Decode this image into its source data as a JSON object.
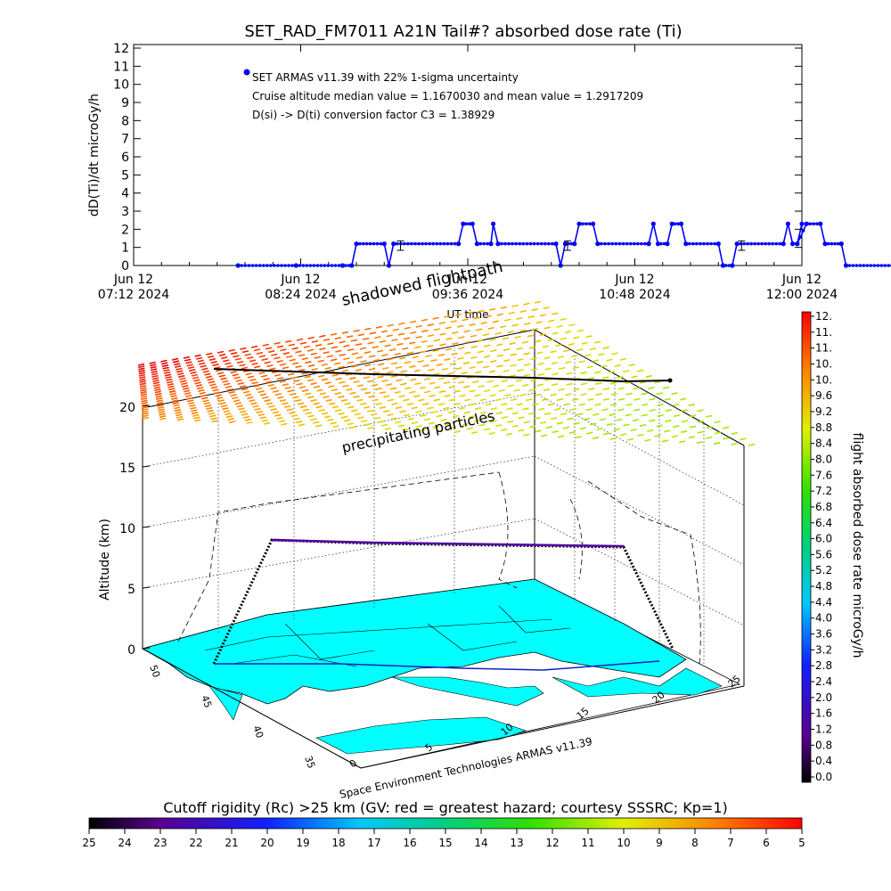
{
  "chart_data": [
    {
      "type": "line",
      "title": "SET_RAD_FM7011  A21N Tail#? absorbed dose rate (Ti)",
      "ylabel": "dD(Ti)/dt microGy/h",
      "xlabel": "UT time",
      "ylim": [
        0,
        12
      ],
      "yticks": [
        "0",
        "1",
        "2",
        "3",
        "4",
        "5",
        "6",
        "7",
        "8",
        "9",
        "10",
        "11",
        "12"
      ],
      "xticks": [
        {
          "date": "Jun 12",
          "time": "07:12 2024"
        },
        {
          "date": "Jun 12",
          "time": "08:24 2024"
        },
        {
          "date": "Jun 12",
          "time": "09:36 2024"
        },
        {
          "date": "Jun 12",
          "time": "10:48 2024"
        },
        {
          "date": "Jun 12",
          "time": "12:00 2024"
        }
      ],
      "xrange_minutes": [
        0,
        288
      ],
      "annotations": [
        "SET ARMAS v11.39 with 22% 1-sigma uncertainty",
        "Cruise altitude median value = 1.1670030 and mean value = 1.2917209",
        "D(si) -> D(ti) conversion factor C3 = 1.38929"
      ],
      "series": [
        {
          "color": "#0000ff",
          "points": [
            [
              45,
              0
            ],
            [
              70,
              0
            ],
            [
              90,
              0
            ],
            [
              94,
              0
            ],
            [
              96,
              1.2
            ],
            [
              108,
              1.2
            ],
            [
              110,
              0
            ],
            [
              112,
              1.2
            ],
            [
              140,
              1.2
            ],
            [
              142,
              2.3
            ],
            [
              146,
              2.3
            ],
            [
              148,
              1.2
            ],
            [
              154,
              1.2
            ],
            [
              155,
              2.3
            ],
            [
              157,
              1.2
            ],
            [
              182,
              1.2
            ],
            [
              184,
              0
            ],
            [
              186,
              1.2
            ],
            [
              190,
              1.2
            ],
            [
              192,
              2.3
            ],
            [
              198,
              2.3
            ],
            [
              200,
              1.2
            ],
            [
              222,
              1.2
            ],
            [
              224,
              2.3
            ],
            [
              226,
              1.2
            ],
            [
              230,
              1.2
            ],
            [
              232,
              2.3
            ],
            [
              236,
              2.3
            ],
            [
              238,
              1.2
            ],
            [
              252,
              1.2
            ],
            [
              254,
              0
            ],
            [
              258,
              0
            ],
            [
              260,
              1.2
            ],
            [
              280,
              1.2
            ],
            [
              282,
              2.3
            ],
            [
              284,
              1.2
            ],
            [
              286,
              1.2
            ],
            [
              288,
              2.3
            ]
          ],
          "points_b": [
            [
              286,
              1.2
            ],
            [
              290,
              2.3
            ],
            [
              296,
              2.3
            ],
            [
              298,
              1.2
            ],
            [
              305,
              1.2
            ],
            [
              307,
              0
            ],
            [
              330,
              0
            ],
            [
              346,
              0
            ]
          ]
        }
      ],
      "error_bars": [
        {
          "x": 115,
          "y": 1.1,
          "err": 0.26
        },
        {
          "x": 187,
          "y": 1.1,
          "err": 0.26
        },
        {
          "x": 262,
          "y": 1.1,
          "err": 0.26
        }
      ]
    },
    {
      "type": "surface-3d",
      "zlabel": "Altitude (km)",
      "zticks": [
        "0",
        "5",
        "10",
        "15",
        "20"
      ],
      "lat_ticks": [
        "50",
        "45",
        "40",
        "35"
      ],
      "lon_ticks": [
        "0",
        "5",
        "10",
        "15",
        "20",
        "25"
      ],
      "labels": {
        "shadowed": "shadowed flightpath",
        "precip": "precipitating particles",
        "credit": "Space Environment Technologies ARMAS v11.39"
      }
    }
  ],
  "colorbar_right": {
    "label": "flight absorbed dose rate microGy/h",
    "ticks": [
      "12.",
      "11.",
      "11.",
      "10.",
      "10.",
      "9.6",
      "9.2",
      "8.8",
      "8.4",
      "8.0",
      "7.6",
      "7.2",
      "6.8",
      "6.4",
      "6.0",
      "5.6",
      "5.2",
      "4.8",
      "4.4",
      "4.0",
      "3.6",
      "3.2",
      "2.8",
      "2.4",
      "2.0",
      "1.6",
      "1.2",
      "0.8",
      "0.4",
      "0.0"
    ]
  },
  "colorbar_bottom": {
    "title": "Cutoff rigidity (Rc) >25 km (GV: red = greatest hazard; courtesy SSSRC; Kp=1)",
    "ticks": [
      "25",
      "24",
      "23",
      "22",
      "21",
      "20",
      "19",
      "18",
      "17",
      "16",
      "15",
      "14",
      "13",
      "12",
      "11",
      "10",
      "9",
      "8",
      "7",
      "6",
      "5"
    ]
  },
  "colors": {
    "series": "#0000ff",
    "route": "#4b0082",
    "ocean_land": "#00ffff"
  }
}
